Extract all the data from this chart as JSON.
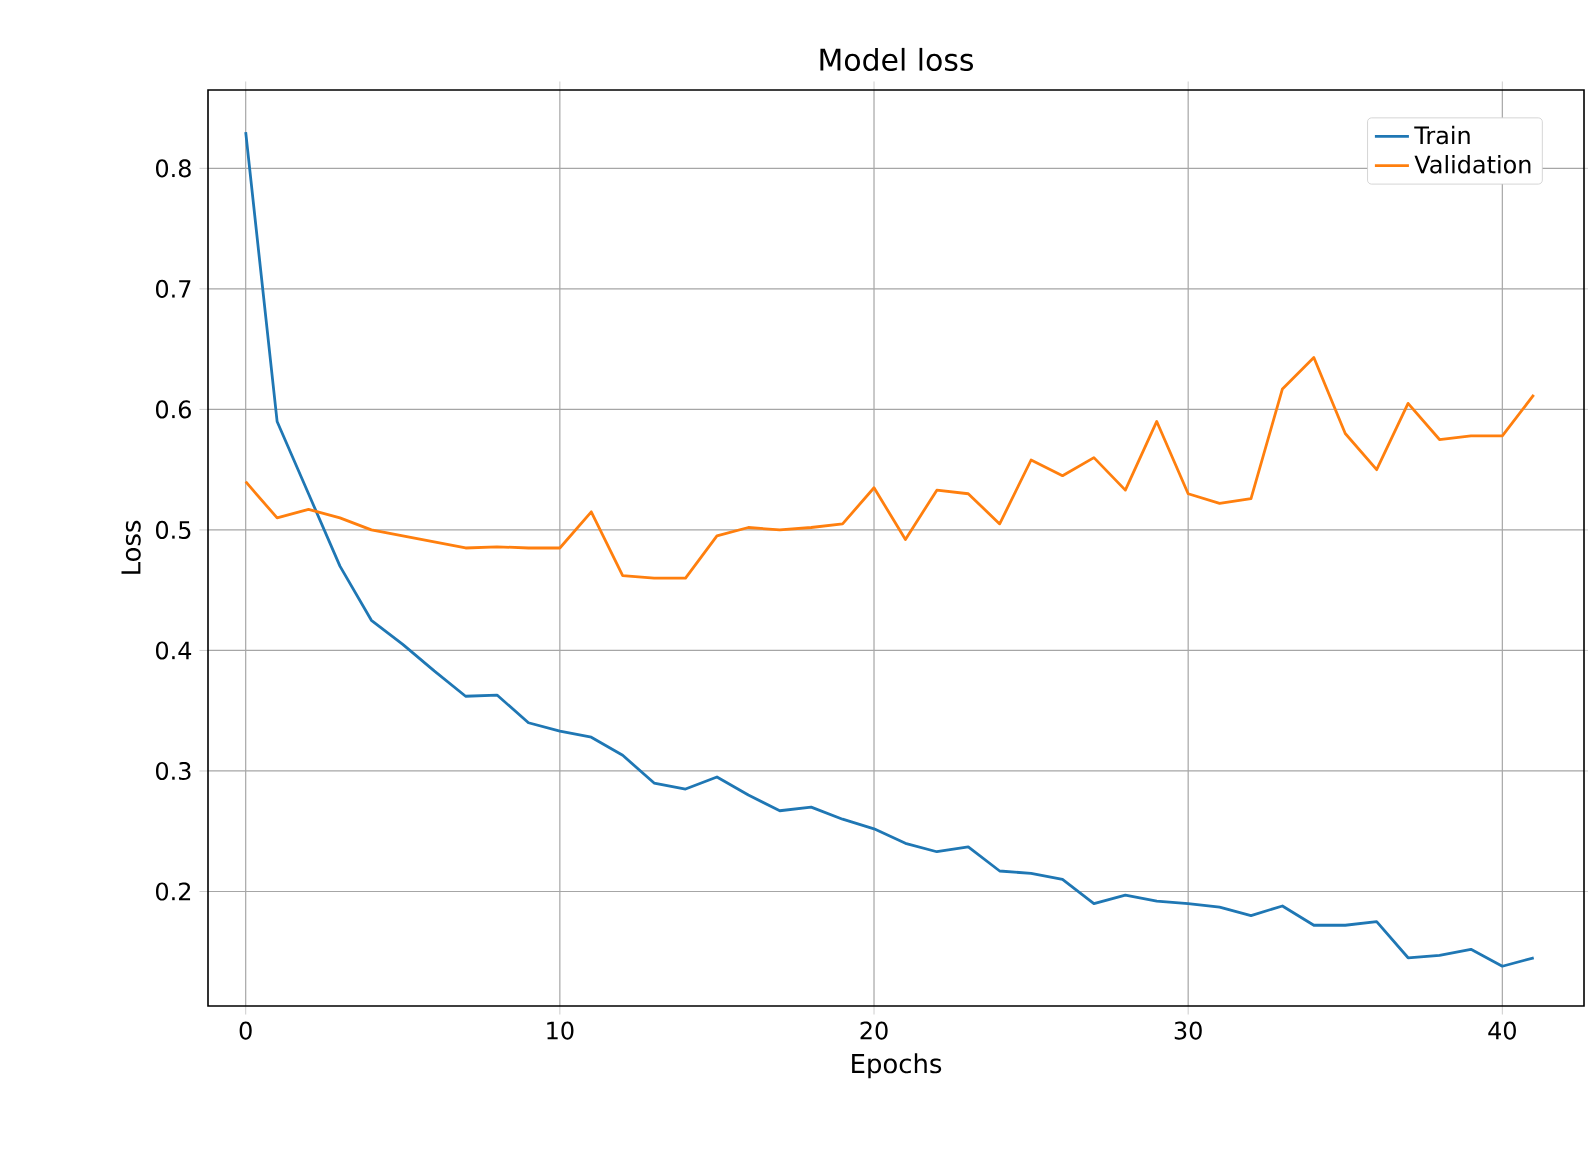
{
  "chart_data": {
    "type": "line",
    "title": "Model loss",
    "xlabel": "Epochs",
    "ylabel": "Loss",
    "x": [
      0,
      1,
      2,
      3,
      4,
      5,
      6,
      7,
      8,
      9,
      10,
      11,
      12,
      13,
      14,
      15,
      16,
      17,
      18,
      19,
      20,
      21,
      22,
      23,
      24,
      25,
      26,
      27,
      28,
      29,
      30,
      31,
      32,
      33,
      34,
      35,
      36,
      37,
      38,
      39,
      40,
      41
    ],
    "series": [
      {
        "name": "Train",
        "color": "#1f77b4",
        "values": [
          0.83,
          0.59,
          0.53,
          0.47,
          0.425,
          0.405,
          0.383,
          0.362,
          0.363,
          0.34,
          0.333,
          0.328,
          0.313,
          0.29,
          0.285,
          0.295,
          0.28,
          0.267,
          0.27,
          0.26,
          0.252,
          0.24,
          0.233,
          0.237,
          0.217,
          0.215,
          0.21,
          0.19,
          0.197,
          0.192,
          0.19,
          0.187,
          0.18,
          0.188,
          0.172,
          0.172,
          0.175,
          0.145,
          0.147,
          0.152,
          0.138,
          0.145
        ]
      },
      {
        "name": "Validation",
        "color": "#ff7f0e",
        "values": [
          0.54,
          0.51,
          0.517,
          0.51,
          0.5,
          0.495,
          0.49,
          0.485,
          0.486,
          0.485,
          0.485,
          0.515,
          0.462,
          0.46,
          0.46,
          0.495,
          0.502,
          0.5,
          0.502,
          0.505,
          0.535,
          0.492,
          0.533,
          0.53,
          0.505,
          0.558,
          0.545,
          0.56,
          0.533,
          0.59,
          0.53,
          0.522,
          0.526,
          0.617,
          0.643,
          0.58,
          0.55,
          0.605,
          0.575,
          0.578,
          0.578,
          0.612
        ]
      }
    ],
    "xlim": [
      -1.2,
      42.6
    ],
    "ylim": [
      0.105,
      0.865
    ],
    "xticks": [
      0,
      10,
      20,
      30,
      40
    ],
    "yticks": [
      0.2,
      0.3,
      0.4,
      0.5,
      0.6,
      0.7,
      0.8
    ],
    "grid": true,
    "legend": "top right"
  }
}
